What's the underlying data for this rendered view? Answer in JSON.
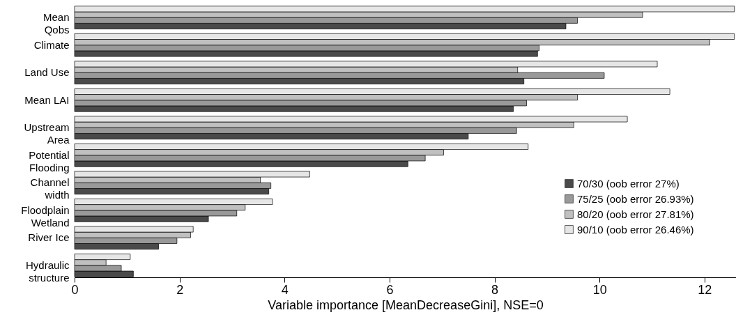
{
  "chart_data": {
    "type": "bar",
    "orientation": "horizontal",
    "xlabel": "Variable importance [MeanDecreaseGini], NSE=0",
    "categories": [
      "Mean\nQobs",
      "Climate",
      "Land Use",
      "Mean LAI",
      "Upstream\nArea",
      "Potential\nFlooding",
      "Channel\nwidth",
      "Floodplain\nWetland",
      "River Ice",
      "Hydraulic\nstructure"
    ],
    "series": [
      {
        "name": "70/30 (oob error 27%)",
        "color": "#4a4a4a",
        "values": [
          9.36,
          8.82,
          8.56,
          8.36,
          7.5,
          6.35,
          3.7,
          2.55,
          1.6,
          1.12
        ]
      },
      {
        "name": "75/25 (oob error 26.93%)",
        "color": "#999999",
        "values": [
          9.58,
          8.85,
          10.09,
          8.61,
          8.42,
          6.68,
          3.74,
          3.09,
          1.95,
          0.89
        ]
      },
      {
        "name": "80/20 (oob error 27.81%)",
        "color": "#c0c0c0",
        "values": [
          10.82,
          12.1,
          8.44,
          9.58,
          9.51,
          7.03,
          3.54,
          3.25,
          2.21,
          0.6
        ]
      },
      {
        "name": "90/10 (oob error 26.46%)",
        "color": "#e6e6e6",
        "values": [
          12.57,
          12.57,
          11.1,
          11.34,
          10.53,
          8.64,
          4.48,
          3.77,
          2.26,
          1.06
        ]
      }
    ],
    "xlim": [
      0,
      12.6
    ],
    "xticks": [
      0,
      2,
      4,
      6,
      8,
      10,
      12
    ],
    "grid": false,
    "legend": "bottom right"
  }
}
